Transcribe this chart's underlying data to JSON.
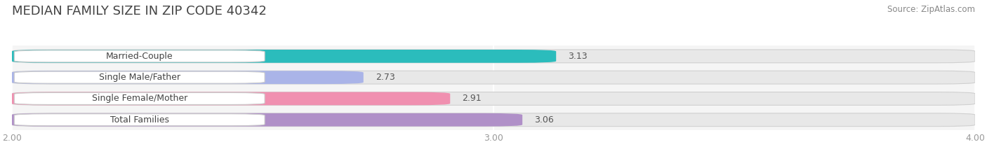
{
  "title": "MEDIAN FAMILY SIZE IN ZIP CODE 40342",
  "source": "Source: ZipAtlas.com",
  "categories": [
    "Married-Couple",
    "Single Male/Father",
    "Single Female/Mother",
    "Total Families"
  ],
  "values": [
    3.13,
    2.73,
    2.91,
    3.06
  ],
  "bar_colors": [
    "#2bbcbc",
    "#aab4e8",
    "#f090b0",
    "#b090c8"
  ],
  "label_colors": [
    "#2bbcbc",
    "#aab4e8",
    "#f090b0",
    "#b090c8"
  ],
  "xlim": [
    2.0,
    4.0
  ],
  "xticks": [
    2.0,
    3.0,
    4.0
  ],
  "xtick_labels": [
    "2.00",
    "3.00",
    "4.00"
  ],
  "bar_height": 0.62,
  "title_fontsize": 13,
  "label_fontsize": 9,
  "value_fontsize": 9,
  "tick_fontsize": 9,
  "source_fontsize": 8.5,
  "bg_color": "#ffffff",
  "plot_bg_color": "#f5f5f5",
  "grid_color": "#ffffff",
  "text_color": "#555555",
  "bar_bg_color": "#e8e8e8"
}
